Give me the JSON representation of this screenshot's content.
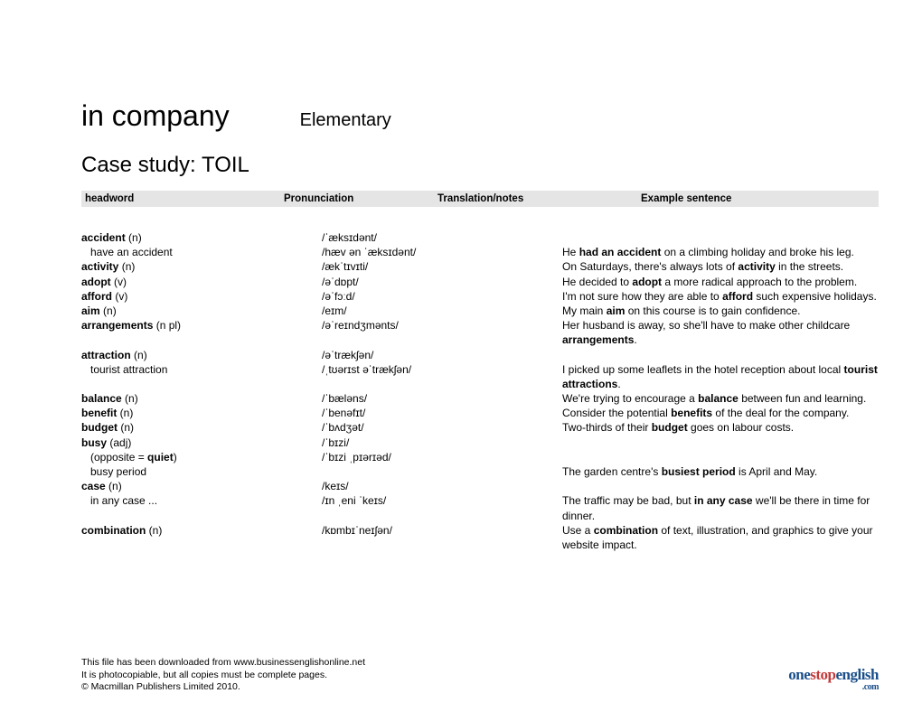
{
  "title": {
    "main": "in company",
    "level": "Elementary"
  },
  "subtitle": "Case study: TOIL",
  "cols": {
    "c1": "headword",
    "c2": "Pronunciation",
    "c3": "Translation/notes",
    "c4": "Example sentence"
  },
  "entries": [
    {
      "hw": "accident",
      "pos": "(n)",
      "pron": "/ˈæksɪdənt/",
      "ex_pre": "",
      "ex_bold": "",
      "ex_post": ""
    },
    {
      "hw_sub": "have an accident",
      "pron": "/hæv ən ˈæksɪdənt/",
      "ex_pre": "He ",
      "ex_bold": "had an accident",
      "ex_post": " on a climbing holiday and broke his leg."
    },
    {
      "hw": "activity",
      "pos": "(n)",
      "pron": "/ækˈtɪvɪti/",
      "ex_pre": "On Saturdays, there's always lots of ",
      "ex_bold": "activity",
      "ex_post": " in the streets."
    },
    {
      "hw": "adopt",
      "pos": "(v)",
      "pron": "/əˈdɒpt/",
      "ex_pre": "He decided to ",
      "ex_bold": "adopt",
      "ex_post": " a more radical approach to the problem."
    },
    {
      "hw": "afford",
      "pos": "(v)",
      "pron": "/əˈfɔːd/",
      "ex_pre": "I'm not sure how they are able to ",
      "ex_bold": "afford",
      "ex_post": " such expensive holidays."
    },
    {
      "hw": "aim",
      "pos": "(n)",
      "pron": "/eɪm/",
      "ex_pre": "My main ",
      "ex_bold": "aim",
      "ex_post": " on this course is to gain confidence."
    },
    {
      "hw": "arrangements",
      "pos": "(n pl)",
      "pron": "/əˈreɪndʒmənts/",
      "ex_pre": "Her husband is away, so she'll have to make other childcare ",
      "ex_bold": "arrangements",
      "ex_post": "."
    },
    {
      "hw": "attraction",
      "pos": "(n)",
      "pron": "/əˈtrækʃən/",
      "ex_pre": "",
      "ex_bold": "",
      "ex_post": ""
    },
    {
      "hw_sub": "tourist attraction",
      "pron": "/ˌtʊərɪst əˈtrækʃən/",
      "ex_pre": "I picked up some leaflets in the hotel reception about local ",
      "ex_bold": "tourist attractions",
      "ex_post": "."
    },
    {
      "hw": "balance",
      "pos": "(n)",
      "pron": "/ˈbæləns/",
      "ex_pre": "We're trying to encourage a ",
      "ex_bold": "balance",
      "ex_post": " between fun and learning."
    },
    {
      "hw": "benefit",
      "pos": "(n)",
      "pron": "/ˈbenəfɪt/",
      "ex_pre": "Consider the potential ",
      "ex_bold": "benefits",
      "ex_post": " of the deal for the company."
    },
    {
      "hw": "budget",
      "pos": "(n)",
      "pron": "/ˈbʌdʒət/",
      "ex_pre": "Two-thirds of their ",
      "ex_bold": "budget",
      "ex_post": " goes on labour costs."
    },
    {
      "hw": "busy",
      "pos": "(adj)",
      "pron": "/ˈbɪzi/",
      "ex_pre": "",
      "ex_bold": "",
      "ex_post": ""
    },
    {
      "hw_sub_html": "(opposite = <b>quiet</b>)",
      "pron": "/ˈbɪzi ˌpɪərɪəd/",
      "ex_pre": "",
      "ex_bold": "",
      "ex_post": ""
    },
    {
      "hw_sub": "busy period",
      "pron": "",
      "ex_pre": "The garden centre's ",
      "ex_bold": "busiest period",
      "ex_post": " is April and May."
    },
    {
      "hw": "case",
      "pos": "(n)",
      "pron": "/keɪs/",
      "ex_pre": "",
      "ex_bold": "",
      "ex_post": ""
    },
    {
      "hw_sub": "in any case ...",
      "pron": "/ɪn ˌeni ˈkeɪs/",
      "ex_pre": "The traffic may be bad, but ",
      "ex_bold": "in any case",
      "ex_post": " we'll be there in time for dinner."
    },
    {
      "hw": "combination",
      "pos": "(n)",
      "pron": "/kɒmbɪˈneɪʃən/",
      "ex_pre": "Use a ",
      "ex_bold": "combination",
      "ex_post": " of text, illustration, and graphics to give your website impact."
    }
  ],
  "footer": {
    "l1": "This file has been downloaded from www.businessenglishonline.net",
    "l2": "It is photocopiable, but all copies must be complete pages.",
    "l3": "© Macmillan Publishers Limited 2010."
  },
  "logo": {
    "p1": "one",
    "p2": "stop",
    "p3": "english",
    "p4": ".com"
  },
  "colors": {
    "header_bg": "#e5e5e5",
    "text": "#000000",
    "logo_blue": "#1a4e8a",
    "logo_red": "#c23a3a",
    "page_bg": "#ffffff"
  },
  "fonts": {
    "body": "Arial",
    "logo": "Georgia"
  }
}
